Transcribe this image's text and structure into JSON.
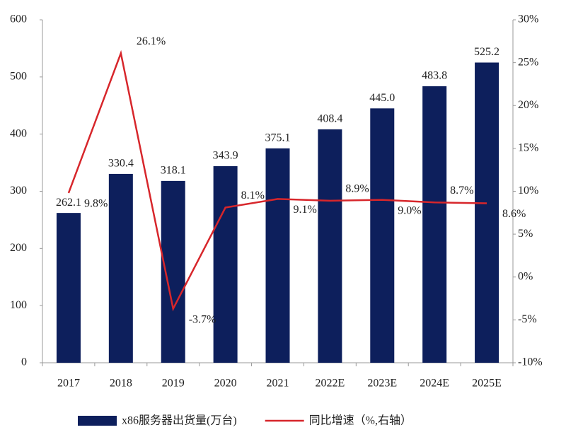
{
  "chart_data": {
    "type": "bar",
    "categories": [
      "2017",
      "2018",
      "2019",
      "2020",
      "2021",
      "2022E",
      "2023E",
      "2024E",
      "2025E"
    ],
    "series": [
      {
        "name": "x86服务器出货量(万台)",
        "type": "bar",
        "color": "#0d1f5c",
        "values": [
          262.1,
          330.4,
          318.1,
          343.9,
          375.1,
          408.4,
          445.0,
          483.8,
          525.2
        ],
        "value_labels": [
          "262.1",
          "330.4",
          "318.1",
          "343.9",
          "375.1",
          "408.4",
          "445.0",
          "483.8",
          "525.2"
        ]
      },
      {
        "name": "同比增速（%,右轴）",
        "type": "line",
        "color": "#d7262b",
        "axis": "y2",
        "values": [
          9.8,
          26.1,
          -3.7,
          8.1,
          9.1,
          8.9,
          9.0,
          8.7,
          8.6
        ],
        "value_labels": [
          "9.8%",
          "26.1%",
          "-3.7%",
          "8.1%",
          "9.1%",
          "8.9%",
          "9.0%",
          "8.7%",
          "8.6%"
        ]
      }
    ],
    "ylim": [
      0,
      600
    ],
    "yticks": [
      0,
      100,
      200,
      300,
      400,
      500,
      600
    ],
    "y2lim": [
      -10,
      30
    ],
    "y2ticks": [
      {
        "value": -10,
        "label": "-10%"
      },
      {
        "value": -5,
        "label": "-5%"
      },
      {
        "value": 0,
        "label": "0%"
      },
      {
        "value": 5,
        "label": "5%"
      },
      {
        "value": 10,
        "label": "10%"
      },
      {
        "value": 15,
        "label": "15%"
      },
      {
        "value": 20,
        "label": "20%"
      },
      {
        "value": 25,
        "label": "25%"
      },
      {
        "value": 30,
        "label": "30%"
      }
    ]
  }
}
